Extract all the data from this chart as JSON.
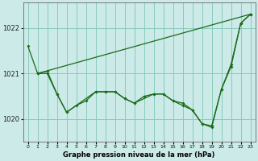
{
  "title": "Graphe pression niveau de la mer (hPa)",
  "yticks": [
    1020,
    1021,
    1022
  ],
  "ylim": [
    1019.5,
    1022.55
  ],
  "xlim": [
    -0.5,
    23.5
  ],
  "bg_color": "#cceae8",
  "grid_color": "#88ccbb",
  "line_color": "#1a6b1a",
  "line_width": 0.9,
  "marker_size": 2.0,
  "line1_x": [
    0,
    1,
    23
  ],
  "line1_y": [
    1021.6,
    1021.0,
    1022.3
  ],
  "line2_x": [
    1,
    2,
    3,
    4,
    5,
    6,
    7,
    8,
    9,
    10,
    11,
    12,
    13,
    14,
    15,
    16,
    17,
    18,
    19,
    20,
    21,
    22,
    23
  ],
  "line2_y": [
    1021.0,
    1021.0,
    1020.55,
    1020.15,
    1020.3,
    1020.4,
    1020.6,
    1020.6,
    1020.6,
    1020.45,
    1020.35,
    1020.5,
    1020.55,
    1020.55,
    1020.4,
    1020.35,
    1020.2,
    1019.9,
    1019.85,
    1020.65,
    1021.2,
    1022.1,
    1022.3
  ],
  "line3_x": [
    1,
    2,
    3,
    4,
    7,
    8,
    9,
    10,
    11,
    13,
    14,
    15,
    16,
    17,
    18,
    19,
    20,
    21,
    22,
    23
  ],
  "line3_y": [
    1021.0,
    1021.05,
    1020.55,
    1020.15,
    1020.6,
    1020.6,
    1020.6,
    1020.45,
    1020.35,
    1020.55,
    1020.55,
    1020.4,
    1020.3,
    1020.2,
    1019.9,
    1019.82,
    1020.65,
    1021.15,
    1022.1,
    1022.3
  ],
  "xtick_labels": [
    "0",
    "1",
    "2",
    "3",
    "4",
    "5",
    "6",
    "7",
    "8",
    "9",
    "10",
    "11",
    "12",
    "13",
    "14",
    "15",
    "16",
    "17",
    "18",
    "19",
    "20",
    "21",
    "22",
    "23"
  ]
}
